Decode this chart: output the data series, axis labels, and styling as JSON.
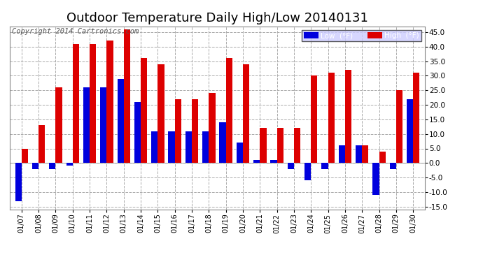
{
  "title": "Outdoor Temperature Daily High/Low 20140131",
  "copyright": "Copyright 2014 Cartronics.com",
  "legend_low": "Low  (°F)",
  "legend_high": "High  (°F)",
  "dates": [
    "01/07",
    "01/08",
    "01/09",
    "01/10",
    "01/11",
    "01/12",
    "01/13",
    "01/14",
    "01/15",
    "01/16",
    "01/17",
    "01/18",
    "01/19",
    "01/20",
    "01/21",
    "01/22",
    "01/23",
    "01/24",
    "01/25",
    "01/26",
    "01/27",
    "01/28",
    "01/29",
    "01/30"
  ],
  "highs": [
    5,
    13,
    26,
    41,
    41,
    42,
    46,
    36,
    34,
    22,
    22,
    24,
    36,
    34,
    12,
    12,
    12,
    30,
    31,
    32,
    6,
    4,
    25,
    31
  ],
  "lows": [
    -13,
    -2,
    -2,
    -1,
    26,
    26,
    29,
    21,
    11,
    11,
    11,
    11,
    14,
    7,
    1,
    1,
    -2,
    -6,
    -2,
    6,
    6,
    -11,
    -2,
    22
  ],
  "ylim": [
    -16,
    47
  ],
  "yticks": [
    -15.0,
    -10.0,
    -5.0,
    0.0,
    5.0,
    10.0,
    15.0,
    20.0,
    25.0,
    30.0,
    35.0,
    40.0,
    45.0
  ],
  "ytick_labels": [
    "-15.0",
    "-10.0",
    "-5.0",
    "0.0",
    "5.0",
    "10.0",
    "15.0",
    "20.0",
    "25.0",
    "30.0",
    "35.0",
    "40.0",
    "45.0"
  ],
  "bar_color_low": "#0000dd",
  "bar_color_high": "#dd0000",
  "background_color": "#ffffff",
  "grid_color": "#aaaaaa",
  "title_fontsize": 13,
  "copyright_fontsize": 7.5
}
